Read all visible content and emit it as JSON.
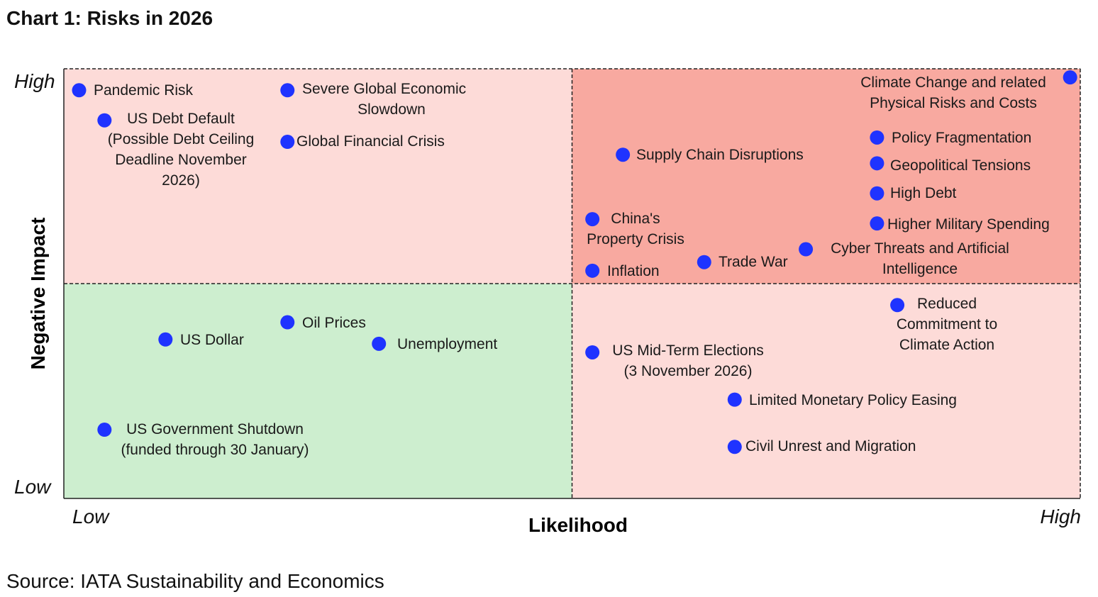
{
  "title": "Chart 1: Risks in 2026",
  "source": "Source: IATA Sustainability and Economics",
  "colors": {
    "high_high_quadrant": "#f8a9a0",
    "mixed_quadrant": "#fddbd8",
    "low_low_quadrant": "#cdeecf",
    "point": "#1f33ff",
    "border": "#222222"
  },
  "chart_data": {
    "type": "scatter",
    "title": "Chart 1: Risks in 2026",
    "xlabel": "Likelihood",
    "ylabel": "Negative Impact",
    "x_tick_labels": [
      "Low",
      "High"
    ],
    "y_tick_labels": [
      "Low",
      "High"
    ],
    "xlim": [
      0,
      10
    ],
    "ylim": [
      0,
      10
    ],
    "quadrant_split": [
      5,
      5
    ],
    "grid": false,
    "points": [
      {
        "label": [
          "Pandemic Risk"
        ],
        "x": 0.15,
        "y": 9.5
      },
      {
        "label": [
          "US Debt Default",
          "(Possible Debt Ceiling",
          "Deadline November",
          "2026)"
        ],
        "x": 0.4,
        "y": 8.8
      },
      {
        "label": [
          "Severe Global Economic",
          "Slowdown"
        ],
        "x": 2.2,
        "y": 9.5
      },
      {
        "label": [
          "Global Financial Crisis"
        ],
        "x": 2.2,
        "y": 8.3
      },
      {
        "label": [
          "Climate Change and related",
          "Physical Risks and Costs"
        ],
        "x": 9.9,
        "y": 9.8
      },
      {
        "label": [
          "Supply Chain Disruptions"
        ],
        "x": 5.5,
        "y": 8.0
      },
      {
        "label": [
          "Policy Fragmentation"
        ],
        "x": 8.0,
        "y": 8.4
      },
      {
        "label": [
          "Geopolitical Tensions"
        ],
        "x": 8.0,
        "y": 7.8
      },
      {
        "label": [
          "High Debt"
        ],
        "x": 8.0,
        "y": 7.1
      },
      {
        "label": [
          "Higher Military Spending"
        ],
        "x": 8.0,
        "y": 6.4
      },
      {
        "label": [
          "China's",
          "Property Crisis"
        ],
        "x": 5.2,
        "y": 6.5
      },
      {
        "label": [
          "Cyber Threats and Artificial",
          "Intelligence"
        ],
        "x": 7.3,
        "y": 5.8
      },
      {
        "label": [
          "Trade War"
        ],
        "x": 6.3,
        "y": 5.5
      },
      {
        "label": [
          "Inflation"
        ],
        "x": 5.2,
        "y": 5.3
      },
      {
        "label": [
          "Reduced",
          "Commitment to",
          "Climate Action"
        ],
        "x": 8.2,
        "y": 4.5
      },
      {
        "label": [
          "US Mid-Term Elections",
          "(3 November 2026)"
        ],
        "x": 5.2,
        "y": 3.4
      },
      {
        "label": [
          "Limited Monetary Policy Easing"
        ],
        "x": 6.6,
        "y": 2.3
      },
      {
        "label": [
          "Civil Unrest and Migration"
        ],
        "x": 6.6,
        "y": 1.2
      },
      {
        "label": [
          "US Dollar"
        ],
        "x": 1.0,
        "y": 3.7
      },
      {
        "label": [
          "Oil Prices"
        ],
        "x": 2.2,
        "y": 4.1
      },
      {
        "label": [
          "Unemployment"
        ],
        "x": 3.1,
        "y": 3.6
      },
      {
        "label": [
          "US Government Shutdown",
          "(funded through 30 January)"
        ],
        "x": 0.4,
        "y": 1.6
      }
    ]
  }
}
